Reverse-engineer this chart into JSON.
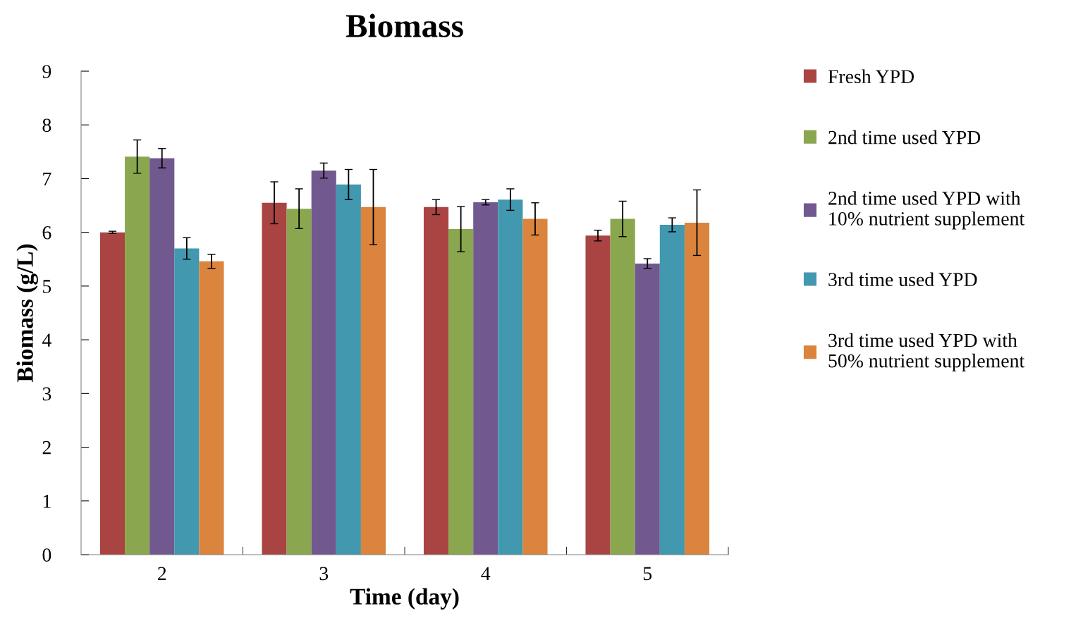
{
  "chart_data": {
    "type": "bar",
    "title": "Biomass",
    "xlabel": "Time (day)",
    "ylabel": "Biomass (g/L)",
    "categories": [
      "2",
      "3",
      "4",
      "5"
    ],
    "series": [
      {
        "name": "Fresh YPD",
        "color": "#a94442",
        "values": [
          6.0,
          6.55,
          6.47,
          5.94
        ],
        "errors": [
          0.02,
          0.39,
          0.14,
          0.1
        ]
      },
      {
        "name": "2nd time used YPD",
        "color": "#8aa64e",
        "values": [
          7.41,
          6.44,
          6.06,
          6.25
        ],
        "errors": [
          0.31,
          0.37,
          0.42,
          0.33
        ]
      },
      {
        "name": "2nd time used YPD with 10% nutrient supplement",
        "color": "#71588f",
        "values": [
          7.38,
          7.15,
          6.56,
          5.42
        ],
        "errors": [
          0.18,
          0.14,
          0.05,
          0.09
        ]
      },
      {
        "name": "3rd time used YPD",
        "color": "#4198af",
        "values": [
          5.7,
          6.89,
          6.61,
          6.14
        ],
        "errors": [
          0.2,
          0.28,
          0.2,
          0.13
        ]
      },
      {
        "name": "3rd time used YPD with 50% nutrient supplement",
        "color": "#db843d",
        "values": [
          5.46,
          6.47,
          6.25,
          6.18
        ],
        "errors": [
          0.13,
          0.7,
          0.3,
          0.61
        ]
      }
    ],
    "ylim": [
      0,
      9
    ],
    "yticks": [
      0,
      1,
      2,
      3,
      4,
      5,
      6,
      7,
      8,
      9
    ],
    "grid": false,
    "legend": "right"
  }
}
